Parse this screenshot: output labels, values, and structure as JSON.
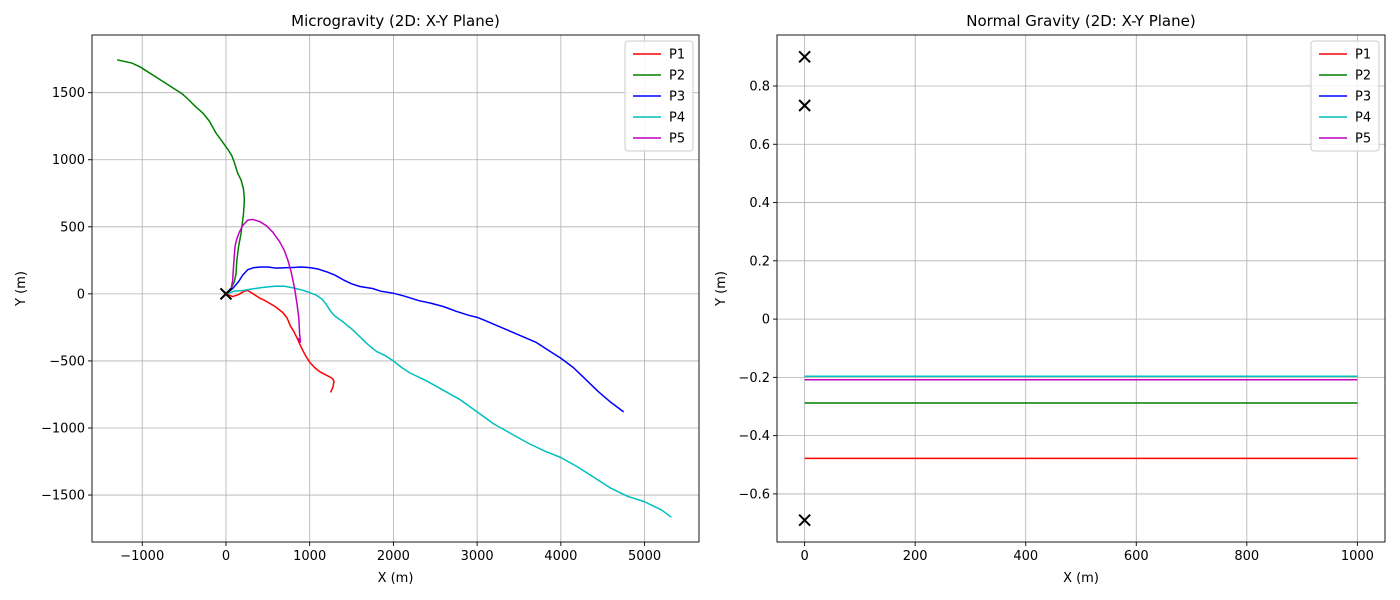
{
  "chart_data": [
    {
      "type": "line",
      "title": "Microgravity (2D: X-Y Plane)",
      "xlabel": "X (m)",
      "ylabel": "Y (m)",
      "xlim": [
        -1600,
        5650
      ],
      "ylim": [
        -1850,
        1930
      ],
      "xticks": [
        -1000,
        0,
        1000,
        2000,
        3000,
        4000,
        5000
      ],
      "yticks": [
        -1500,
        -1000,
        -500,
        0,
        500,
        1000,
        1500
      ],
      "grid": true,
      "legend": "upper right",
      "series": [
        {
          "name": "P1",
          "color": "#ff0000",
          "points": [
            [
              0,
              0
            ],
            [
              80,
              -20
            ],
            [
              150,
              -5
            ],
            [
              220,
              20
            ],
            [
              260,
              25
            ],
            [
              300,
              10
            ],
            [
              350,
              -10
            ],
            [
              400,
              -30
            ],
            [
              450,
              -45
            ],
            [
              520,
              -70
            ],
            [
              600,
              -100
            ],
            [
              680,
              -140
            ],
            [
              730,
              -180
            ],
            [
              770,
              -240
            ],
            [
              810,
              -280
            ],
            [
              850,
              -330
            ],
            [
              900,
              -400
            ],
            [
              950,
              -460
            ],
            [
              1000,
              -510
            ],
            [
              1060,
              -550
            ],
            [
              1120,
              -580
            ],
            [
              1180,
              -600
            ],
            [
              1240,
              -620
            ],
            [
              1270,
              -630
            ],
            [
              1290,
              -650
            ],
            [
              1280,
              -690
            ],
            [
              1260,
              -720
            ],
            [
              1250,
              -735
            ]
          ]
        },
        {
          "name": "P2",
          "color": "#008000",
          "points": [
            [
              0,
              0
            ],
            [
              60,
              40
            ],
            [
              100,
              90
            ],
            [
              120,
              150
            ],
            [
              130,
              250
            ],
            [
              150,
              350
            ],
            [
              180,
              450
            ],
            [
              210,
              600
            ],
            [
              220,
              700
            ],
            [
              210,
              780
            ],
            [
              180,
              850
            ],
            [
              140,
              900
            ],
            [
              100,
              980
            ],
            [
              70,
              1030
            ],
            [
              20,
              1080
            ],
            [
              -50,
              1140
            ],
            [
              -120,
              1200
            ],
            [
              -200,
              1290
            ],
            [
              -280,
              1350
            ],
            [
              -370,
              1400
            ],
            [
              -450,
              1450
            ],
            [
              -520,
              1490
            ],
            [
              -620,
              1530
            ],
            [
              -720,
              1570
            ],
            [
              -820,
              1610
            ],
            [
              -920,
              1650
            ],
            [
              -1020,
              1690
            ],
            [
              -1120,
              1720
            ],
            [
              -1300,
              1745
            ]
          ]
        },
        {
          "name": "P3",
          "color": "#0000ff",
          "points": [
            [
              0,
              0
            ],
            [
              80,
              40
            ],
            [
              150,
              90
            ],
            [
              200,
              140
            ],
            [
              260,
              180
            ],
            [
              330,
              195
            ],
            [
              420,
              200
            ],
            [
              500,
              200
            ],
            [
              600,
              192
            ],
            [
              700,
              195
            ],
            [
              800,
              197
            ],
            [
              900,
              200
            ],
            [
              1000,
              196
            ],
            [
              1100,
              185
            ],
            [
              1200,
              165
            ],
            [
              1300,
              140
            ],
            [
              1400,
              105
            ],
            [
              1500,
              75
            ],
            [
              1600,
              55
            ],
            [
              1750,
              40
            ],
            [
              1850,
              20
            ],
            [
              2000,
              5
            ],
            [
              2150,
              -20
            ],
            [
              2300,
              -50
            ],
            [
              2450,
              -70
            ],
            [
              2600,
              -95
            ],
            [
              2750,
              -130
            ],
            [
              2900,
              -160
            ],
            [
              3000,
              -175
            ],
            [
              3100,
              -200
            ],
            [
              3250,
              -240
            ],
            [
              3400,
              -280
            ],
            [
              3550,
              -320
            ],
            [
              3700,
              -360
            ],
            [
              3850,
              -420
            ],
            [
              4000,
              -480
            ],
            [
              4150,
              -550
            ],
            [
              4300,
              -640
            ],
            [
              4450,
              -730
            ],
            [
              4600,
              -810
            ],
            [
              4750,
              -880
            ]
          ]
        },
        {
          "name": "P4",
          "color": "#00bfbf",
          "points": [
            [
              0,
              0
            ],
            [
              100,
              20
            ],
            [
              200,
              25
            ],
            [
              300,
              35
            ],
            [
              400,
              45
            ],
            [
              500,
              52
            ],
            [
              600,
              58
            ],
            [
              700,
              57
            ],
            [
              800,
              45
            ],
            [
              900,
              30
            ],
            [
              1000,
              10
            ],
            [
              1080,
              -10
            ],
            [
              1150,
              -40
            ],
            [
              1200,
              -80
            ],
            [
              1250,
              -130
            ],
            [
              1300,
              -165
            ],
            [
              1400,
              -210
            ],
            [
              1500,
              -260
            ],
            [
              1600,
              -320
            ],
            [
              1700,
              -380
            ],
            [
              1800,
              -430
            ],
            [
              1900,
              -460
            ],
            [
              2000,
              -500
            ],
            [
              2100,
              -550
            ],
            [
              2200,
              -590
            ],
            [
              2400,
              -650
            ],
            [
              2600,
              -720
            ],
            [
              2800,
              -790
            ],
            [
              3000,
              -880
            ],
            [
              3200,
              -970
            ],
            [
              3400,
              -1040
            ],
            [
              3600,
              -1110
            ],
            [
              3800,
              -1170
            ],
            [
              4000,
              -1220
            ],
            [
              4200,
              -1290
            ],
            [
              4400,
              -1370
            ],
            [
              4600,
              -1450
            ],
            [
              4800,
              -1510
            ],
            [
              5000,
              -1550
            ],
            [
              5100,
              -1580
            ],
            [
              5200,
              -1610
            ],
            [
              5320,
              -1665
            ]
          ]
        },
        {
          "name": "P5",
          "color": "#bf00bf",
          "points": [
            [
              0,
              0
            ],
            [
              60,
              30
            ],
            [
              80,
              100
            ],
            [
              90,
              200
            ],
            [
              100,
              290
            ],
            [
              110,
              360
            ],
            [
              130,
              410
            ],
            [
              160,
              460
            ],
            [
              200,
              510
            ],
            [
              260,
              550
            ],
            [
              320,
              555
            ],
            [
              400,
              540
            ],
            [
              480,
              510
            ],
            [
              560,
              460
            ],
            [
              640,
              390
            ],
            [
              700,
              320
            ],
            [
              740,
              250
            ],
            [
              780,
              160
            ],
            [
              820,
              40
            ],
            [
              850,
              -80
            ],
            [
              870,
              -180
            ],
            [
              880,
              -300
            ],
            [
              890,
              -360
            ],
            [
              860,
              -330
            ]
          ]
        }
      ],
      "markers": [
        [
          0,
          0
        ]
      ]
    },
    {
      "type": "line",
      "title": "Normal Gravity (2D: X-Y Plane)",
      "xlabel": "X (m)",
      "ylabel": "Y (m)",
      "xlim": [
        -50,
        1050
      ],
      "ylim": [
        -0.765,
        0.975
      ],
      "xticks": [
        0,
        200,
        400,
        600,
        800,
        1000
      ],
      "yticks": [
        -0.6,
        -0.4,
        -0.2,
        0.0,
        0.2,
        0.4,
        0.6,
        0.8
      ],
      "grid": true,
      "legend": "upper right",
      "series": [
        {
          "name": "P1",
          "color": "#ff0000",
          "points": [
            [
              0,
              -0.478
            ],
            [
              1000,
              -0.478
            ]
          ]
        },
        {
          "name": "P2",
          "color": "#008000",
          "points": [
            [
              0,
              -0.288
            ],
            [
              1000,
              -0.288
            ]
          ]
        },
        {
          "name": "P3",
          "color": "#0000ff",
          "points": [
            [
              0,
              -0.196
            ],
            [
              1000,
              -0.196
            ]
          ]
        },
        {
          "name": "P4",
          "color": "#00bfbf",
          "points": [
            [
              0,
              -0.196
            ],
            [
              1000,
              -0.196
            ]
          ]
        },
        {
          "name": "P5",
          "color": "#bf00bf",
          "points": [
            [
              0,
              -0.208
            ],
            [
              1000,
              -0.208
            ]
          ]
        }
      ],
      "markers": [
        [
          0,
          0.9
        ],
        [
          0,
          0.733
        ],
        [
          0,
          -0.69
        ]
      ]
    }
  ]
}
